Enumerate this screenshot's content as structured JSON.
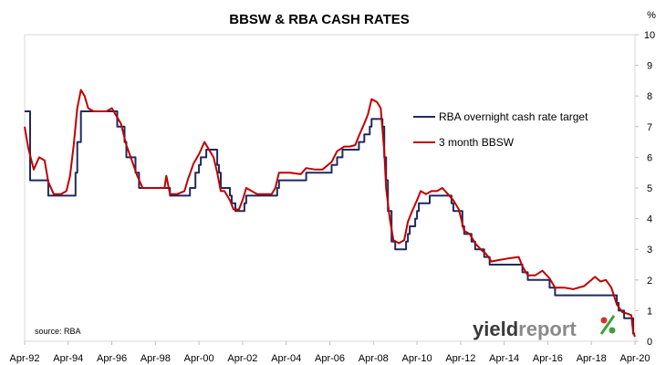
{
  "chart_data": {
    "type": "line",
    "title": "BBSW & RBA CASH RATES",
    "y_unit": "%",
    "ylim": [
      0,
      10
    ],
    "y_ticks": [
      "0",
      "1",
      "2",
      "3",
      "4",
      "5",
      "6",
      "7",
      "8",
      "9",
      "10"
    ],
    "y_axis_side": "right",
    "xlim": [
      "1992-04",
      "2020-04"
    ],
    "x_ticks": [
      "Apr-92",
      "Apr-94",
      "Apr-96",
      "Apr-98",
      "Apr-00",
      "Apr-02",
      "Apr-04",
      "Apr-06",
      "Apr-08",
      "Apr-10",
      "Apr-12",
      "Apr-14",
      "Apr-16",
      "Apr-18",
      "Apr-20"
    ],
    "grid": false,
    "legend_position": "top-right",
    "source": "source: RBA",
    "logo": {
      "part1": "yield",
      "part2": "report",
      "part3": "%"
    },
    "series": [
      {
        "name": "RBA overnight cash rate target",
        "color": "#1f2a5e",
        "step": true,
        "points": [
          [
            "1992-04",
            7.5
          ],
          [
            "1992-07",
            5.25
          ],
          [
            "1993-04",
            5.25
          ],
          [
            "1993-05",
            4.75
          ],
          [
            "1994-08",
            5.5
          ],
          [
            "1994-09",
            6.5
          ],
          [
            "1994-11",
            7.5
          ],
          [
            "1996-07",
            7.0
          ],
          [
            "1996-08",
            7.0
          ],
          [
            "1996-11",
            6.5
          ],
          [
            "1996-12",
            6.0
          ],
          [
            "1997-05",
            5.5
          ],
          [
            "1997-07",
            5.0
          ],
          [
            "1998-12",
            4.75
          ],
          [
            "1999-11",
            5.0
          ],
          [
            "2000-02",
            5.5
          ],
          [
            "2000-04",
            5.75
          ],
          [
            "2000-05",
            6.0
          ],
          [
            "2000-08",
            6.25
          ],
          [
            "2001-02",
            5.75
          ],
          [
            "2001-03",
            5.5
          ],
          [
            "2001-04",
            5.0
          ],
          [
            "2001-09",
            4.75
          ],
          [
            "2001-10",
            4.5
          ],
          [
            "2001-12",
            4.25
          ],
          [
            "2002-05",
            4.5
          ],
          [
            "2002-06",
            4.75
          ],
          [
            "2003-11",
            5.0
          ],
          [
            "2003-12",
            5.25
          ],
          [
            "2005-03",
            5.5
          ],
          [
            "2006-05",
            5.75
          ],
          [
            "2006-08",
            6.0
          ],
          [
            "2006-11",
            6.25
          ],
          [
            "2007-08",
            6.5
          ],
          [
            "2007-11",
            6.75
          ],
          [
            "2008-02",
            7.0
          ],
          [
            "2008-03",
            7.25
          ],
          [
            "2008-09",
            7.0
          ],
          [
            "2008-10",
            6.0
          ],
          [
            "2008-11",
            5.25
          ],
          [
            "2008-12",
            4.25
          ],
          [
            "2009-02",
            3.25
          ],
          [
            "2009-04",
            3.0
          ],
          [
            "2009-10",
            3.25
          ],
          [
            "2009-11",
            3.5
          ],
          [
            "2009-12",
            3.75
          ],
          [
            "2010-03",
            4.0
          ],
          [
            "2010-04",
            4.25
          ],
          [
            "2010-05",
            4.5
          ],
          [
            "2010-11",
            4.75
          ],
          [
            "2011-11",
            4.5
          ],
          [
            "2011-12",
            4.25
          ],
          [
            "2012-05",
            3.75
          ],
          [
            "2012-06",
            3.5
          ],
          [
            "2012-10",
            3.25
          ],
          [
            "2012-12",
            3.0
          ],
          [
            "2013-05",
            2.75
          ],
          [
            "2013-08",
            2.5
          ],
          [
            "2015-02",
            2.25
          ],
          [
            "2015-05",
            2.0
          ],
          [
            "2016-05",
            1.75
          ],
          [
            "2016-08",
            1.5
          ],
          [
            "2019-06",
            1.25
          ],
          [
            "2019-07",
            1.0
          ],
          [
            "2019-10",
            0.75
          ],
          [
            "2020-03",
            0.5
          ],
          [
            "2020-03",
            0.25
          ],
          [
            "2020-04",
            0.25
          ]
        ]
      },
      {
        "name": "3 month BBSW",
        "color": "#c00000",
        "step": false,
        "points": [
          [
            "1992-04",
            7.0
          ],
          [
            "1992-06",
            6.3
          ],
          [
            "1992-09",
            5.6
          ],
          [
            "1992-12",
            6.0
          ],
          [
            "1993-03",
            5.9
          ],
          [
            "1993-05",
            5.2
          ],
          [
            "1993-08",
            4.8
          ],
          [
            "1993-12",
            4.8
          ],
          [
            "1994-03",
            4.9
          ],
          [
            "1994-05",
            5.4
          ],
          [
            "1994-07",
            6.4
          ],
          [
            "1994-09",
            7.6
          ],
          [
            "1994-11",
            8.2
          ],
          [
            "1995-01",
            8.0
          ],
          [
            "1995-03",
            7.6
          ],
          [
            "1995-06",
            7.5
          ],
          [
            "1995-10",
            7.5
          ],
          [
            "1996-01",
            7.5
          ],
          [
            "1996-04",
            7.6
          ],
          [
            "1996-06",
            7.4
          ],
          [
            "1996-09",
            7.1
          ],
          [
            "1996-12",
            6.4
          ],
          [
            "1997-03",
            5.9
          ],
          [
            "1997-06",
            5.4
          ],
          [
            "1997-09",
            5.0
          ],
          [
            "1998-01",
            5.0
          ],
          [
            "1998-06",
            5.0
          ],
          [
            "1998-09",
            5.0
          ],
          [
            "1998-10",
            5.4
          ],
          [
            "1998-12",
            4.8
          ],
          [
            "1999-04",
            4.8
          ],
          [
            "1999-08",
            4.9
          ],
          [
            "1999-10",
            5.3
          ],
          [
            "2000-01",
            5.8
          ],
          [
            "2000-04",
            6.1
          ],
          [
            "2000-07",
            6.5
          ],
          [
            "2000-09",
            6.3
          ],
          [
            "2000-12",
            6.0
          ],
          [
            "2001-02",
            5.5
          ],
          [
            "2001-04",
            4.9
          ],
          [
            "2001-06",
            4.9
          ],
          [
            "2001-09",
            4.6
          ],
          [
            "2001-11",
            4.3
          ],
          [
            "2002-02",
            4.3
          ],
          [
            "2002-04",
            4.6
          ],
          [
            "2002-06",
            5.0
          ],
          [
            "2002-09",
            4.9
          ],
          [
            "2002-12",
            4.8
          ],
          [
            "2003-05",
            4.8
          ],
          [
            "2003-08",
            4.8
          ],
          [
            "2003-10",
            5.0
          ],
          [
            "2003-12",
            5.5
          ],
          [
            "2004-06",
            5.5
          ],
          [
            "2004-12",
            5.45
          ],
          [
            "2005-03",
            5.65
          ],
          [
            "2005-08",
            5.6
          ],
          [
            "2005-12",
            5.6
          ],
          [
            "2006-05",
            5.85
          ],
          [
            "2006-08",
            6.2
          ],
          [
            "2006-12",
            6.35
          ],
          [
            "2007-03",
            6.35
          ],
          [
            "2007-06",
            6.4
          ],
          [
            "2007-08",
            6.7
          ],
          [
            "2007-11",
            7.1
          ],
          [
            "2008-01",
            7.4
          ],
          [
            "2008-03",
            7.9
          ],
          [
            "2008-06",
            7.8
          ],
          [
            "2008-08",
            7.6
          ],
          [
            "2008-10",
            6.2
          ],
          [
            "2008-11",
            5.0
          ],
          [
            "2009-01",
            4.0
          ],
          [
            "2009-03",
            3.3
          ],
          [
            "2009-06",
            3.2
          ],
          [
            "2009-09",
            3.3
          ],
          [
            "2009-11",
            3.9
          ],
          [
            "2010-01",
            4.2
          ],
          [
            "2010-04",
            4.6
          ],
          [
            "2010-06",
            4.9
          ],
          [
            "2010-09",
            4.8
          ],
          [
            "2010-12",
            4.9
          ],
          [
            "2011-03",
            4.9
          ],
          [
            "2011-06",
            5.0
          ],
          [
            "2011-09",
            4.8
          ],
          [
            "2011-12",
            4.6
          ],
          [
            "2012-03",
            4.3
          ],
          [
            "2012-06",
            3.6
          ],
          [
            "2012-09",
            3.5
          ],
          [
            "2012-12",
            3.2
          ],
          [
            "2013-03",
            3.0
          ],
          [
            "2013-06",
            2.85
          ],
          [
            "2013-09",
            2.6
          ],
          [
            "2014-01",
            2.65
          ],
          [
            "2014-06",
            2.7
          ],
          [
            "2014-12",
            2.75
          ],
          [
            "2015-02",
            2.45
          ],
          [
            "2015-05",
            2.15
          ],
          [
            "2015-09",
            2.15
          ],
          [
            "2016-01",
            2.3
          ],
          [
            "2016-05",
            2.05
          ],
          [
            "2016-08",
            1.75
          ],
          [
            "2017-01",
            1.75
          ],
          [
            "2017-06",
            1.7
          ],
          [
            "2017-12",
            1.8
          ],
          [
            "2018-03",
            1.95
          ],
          [
            "2018-06",
            2.1
          ],
          [
            "2018-09",
            1.95
          ],
          [
            "2018-12",
            2.0
          ],
          [
            "2019-03",
            1.75
          ],
          [
            "2019-06",
            1.2
          ],
          [
            "2019-09",
            0.95
          ],
          [
            "2019-12",
            0.9
          ],
          [
            "2020-02",
            0.85
          ],
          [
            "2020-03",
            0.3
          ],
          [
            "2020-04",
            0.15
          ]
        ]
      }
    ]
  }
}
